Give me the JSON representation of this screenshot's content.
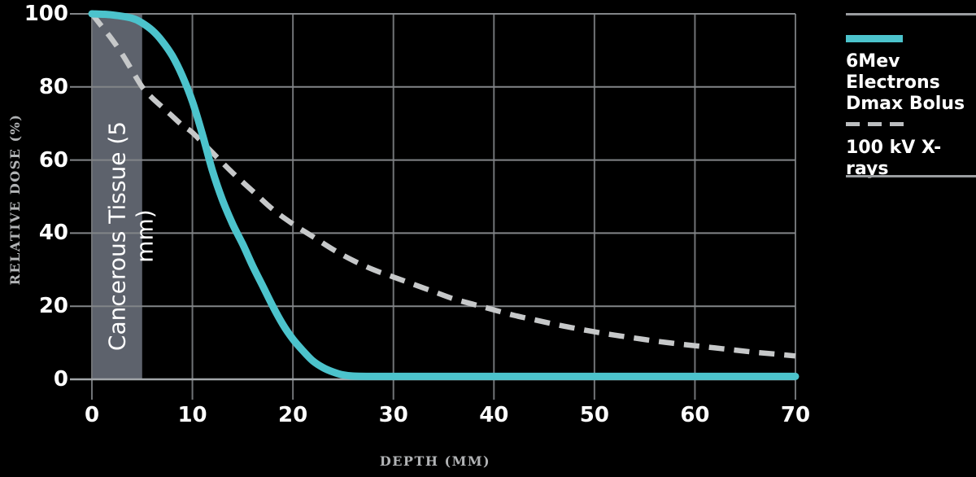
{
  "chart_data": {
    "type": "line",
    "title": "",
    "xlabel": "DEPTH (MM)",
    "ylabel": "RELATIVE DOSE (%)",
    "xlim": [
      0,
      70
    ],
    "ylim": [
      0,
      100
    ],
    "x_ticks": [
      0,
      10,
      20,
      30,
      40,
      50,
      60,
      70
    ],
    "y_ticks": [
      0,
      20,
      40,
      60,
      80,
      100
    ],
    "grid": true,
    "legend_position": "top-right",
    "region": {
      "label": "Cancerous Tissue (5 mm)",
      "x_start": 0,
      "x_end": 5,
      "color": "#5d626c"
    },
    "series": [
      {
        "name": "6Mev Electrons Dmax Bolus",
        "color": "#4cc3cc",
        "style": "solid",
        "points": [
          [
            0,
            100
          ],
          [
            2,
            99.7
          ],
          [
            4,
            98.8
          ],
          [
            5,
            97.5
          ],
          [
            6,
            95.5
          ],
          [
            7,
            92.5
          ],
          [
            8,
            88.5
          ],
          [
            9,
            83
          ],
          [
            10,
            76
          ],
          [
            11,
            67
          ],
          [
            12,
            57
          ],
          [
            13,
            49
          ],
          [
            14,
            42.5
          ],
          [
            15,
            37
          ],
          [
            16,
            31
          ],
          [
            17,
            25.5
          ],
          [
            18,
            20
          ],
          [
            19,
            15
          ],
          [
            20,
            11
          ],
          [
            21,
            7.8
          ],
          [
            22,
            5
          ],
          [
            23,
            3.2
          ],
          [
            24,
            2
          ],
          [
            25,
            1.2
          ],
          [
            26,
            0.9
          ],
          [
            28,
            0.8
          ],
          [
            32,
            0.8
          ],
          [
            40,
            0.8
          ],
          [
            50,
            0.8
          ],
          [
            60,
            0.8
          ],
          [
            70,
            0.8
          ]
        ]
      },
      {
        "name": "100 kV X-rays",
        "color": "#c6c8c9",
        "style": "dashed",
        "points": [
          [
            0,
            100
          ],
          [
            1,
            96.5
          ],
          [
            2,
            93
          ],
          [
            3,
            89
          ],
          [
            4,
            84.5
          ],
          [
            5,
            80
          ],
          [
            6,
            77
          ],
          [
            7,
            74.5
          ],
          [
            8,
            72
          ],
          [
            9,
            69.5
          ],
          [
            10,
            67.5
          ],
          [
            12,
            62
          ],
          [
            14,
            56.5
          ],
          [
            16,
            51.5
          ],
          [
            18,
            46.5
          ],
          [
            20,
            42.5
          ],
          [
            22,
            39
          ],
          [
            24,
            35.5
          ],
          [
            26,
            32.5
          ],
          [
            28,
            30
          ],
          [
            30,
            28
          ],
          [
            32,
            26
          ],
          [
            34,
            24
          ],
          [
            36,
            22
          ],
          [
            38,
            20.5
          ],
          [
            40,
            19
          ],
          [
            42,
            17.5
          ],
          [
            44,
            16.3
          ],
          [
            46,
            15.1
          ],
          [
            48,
            14
          ],
          [
            50,
            13
          ],
          [
            52,
            12.1
          ],
          [
            54,
            11.3
          ],
          [
            56,
            10.5
          ],
          [
            58,
            9.8
          ],
          [
            60,
            9.2
          ],
          [
            62,
            8.6
          ],
          [
            64,
            8
          ],
          [
            66,
            7.4
          ],
          [
            68,
            6.9
          ],
          [
            70,
            6.4
          ]
        ]
      }
    ]
  },
  "legend": {
    "items": [
      {
        "line1": "6Mev Electrons",
        "line2": "Dmax Bolus",
        "swatch": "solid",
        "color": "#4cc3cc"
      },
      {
        "line1": "100 kV X-rays",
        "line2": "",
        "swatch": "dashed",
        "color": "#bcbec0"
      }
    ]
  },
  "colors": {
    "background": "#000000",
    "grid_vertical": "#707376",
    "grid_horizontal": "#828588",
    "axis_line": "#a2a6a9",
    "tick_text": "#ffffff",
    "axis_title_text": "#b2b4b6",
    "legend_separator": "#9a9da0",
    "band_text": "#ffffff"
  }
}
